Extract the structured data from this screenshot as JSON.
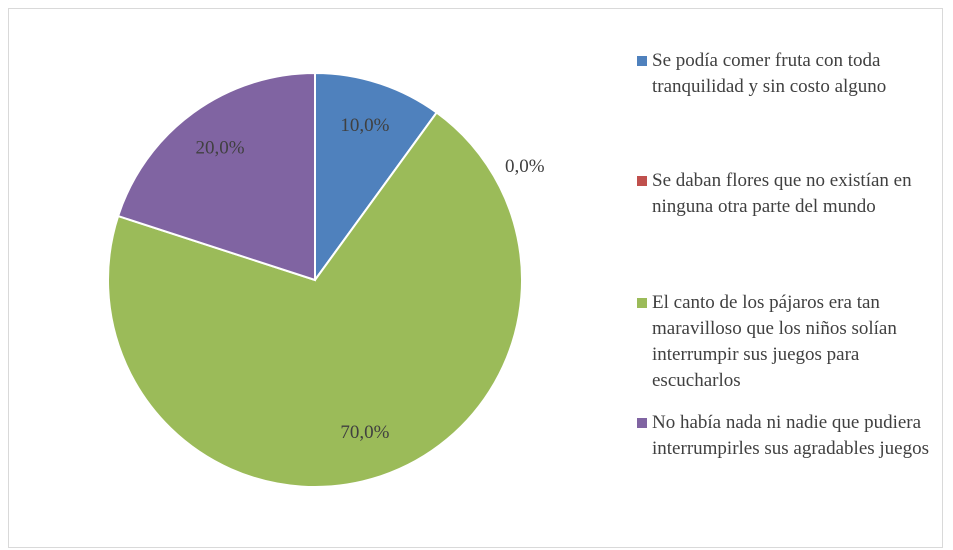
{
  "chart_data": {
    "type": "pie",
    "categories": [
      "Se podía comer fruta con toda tranquilidad y sin costo alguno",
      "Se daban flores que no existían en ninguna otra parte del mundo",
      "El canto de los pájaros era tan maravilloso que los niños solían interrumpir sus juegos para escucharlos",
      "No había nada ni nadie que pudiera interrumpirles sus agradables juegos"
    ],
    "values": [
      10,
      0,
      70,
      20
    ],
    "value_labels": [
      "10,0%",
      "0,0%",
      "70,0%",
      "20,0%"
    ],
    "colors": [
      "#4f81bd",
      "#c0504d",
      "#9bbb59",
      "#8064a2"
    ],
    "legend": "right"
  }
}
